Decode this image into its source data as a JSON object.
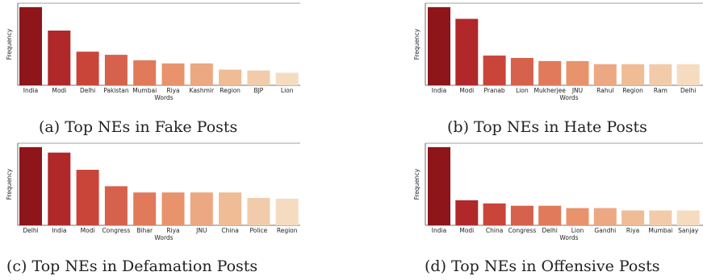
{
  "colors": {
    "palette": [
      "#8e1519",
      "#b0282a",
      "#c9453a",
      "#d6614c",
      "#e07a5a",
      "#e8936b",
      "#eba882",
      "#efbc96",
      "#f2ccaa",
      "#f5dcc0"
    ],
    "axis": "#444444",
    "text": "#222222"
  },
  "chart_data": [
    {
      "type": "bar",
      "categories": [
        "India",
        "Modi",
        "Delhi",
        "Pakistan",
        "Mumbai",
        "Riya",
        "Kashmir",
        "Region",
        "BJP",
        "Lion"
      ],
      "values": [
        100,
        70,
        43,
        39,
        32,
        28,
        28,
        20,
        19,
        16
      ],
      "xlabel": "Words",
      "ylabel": "Frequency",
      "ylim": [
        0,
        105
      ],
      "caption": "(a) Top NEs in Fake Posts"
    },
    {
      "type": "bar",
      "categories": [
        "India",
        "Modi",
        "Pranab",
        "Lion",
        "Mukherjee",
        "JNU",
        "Rahul",
        "Region",
        "Ram",
        "Delhi"
      ],
      "values": [
        100,
        85,
        38,
        35,
        31,
        31,
        27,
        27,
        27,
        27
      ],
      "xlabel": "Words",
      "ylabel": "Frequency",
      "ylim": [
        0,
        105
      ],
      "caption": "(b) Top NEs in Hate Posts"
    },
    {
      "type": "bar",
      "categories": [
        "Delhi",
        "India",
        "Modi",
        "Congress",
        "Bihar",
        "Riya",
        "JNU",
        "China",
        "Police",
        "Region"
      ],
      "values": [
        100,
        93,
        71,
        50,
        42,
        42,
        42,
        42,
        35,
        34
      ],
      "xlabel": "Words",
      "ylabel": "Frequency",
      "ylim": [
        0,
        105
      ],
      "caption": "(c) Top NEs in Defamation Posts"
    },
    {
      "type": "bar",
      "categories": [
        "India",
        "Modi",
        "China",
        "Congress",
        "Delhi",
        "Lion",
        "Gandhi",
        "Riya",
        "Mumbai",
        "Sanjay"
      ],
      "values": [
        100,
        32,
        28,
        25,
        25,
        22,
        22,
        19,
        19,
        19
      ],
      "xlabel": "Words",
      "ylabel": "Frequency",
      "ylim": [
        0,
        105
      ],
      "caption": "(d) Top NEs in Offensive Posts"
    }
  ]
}
